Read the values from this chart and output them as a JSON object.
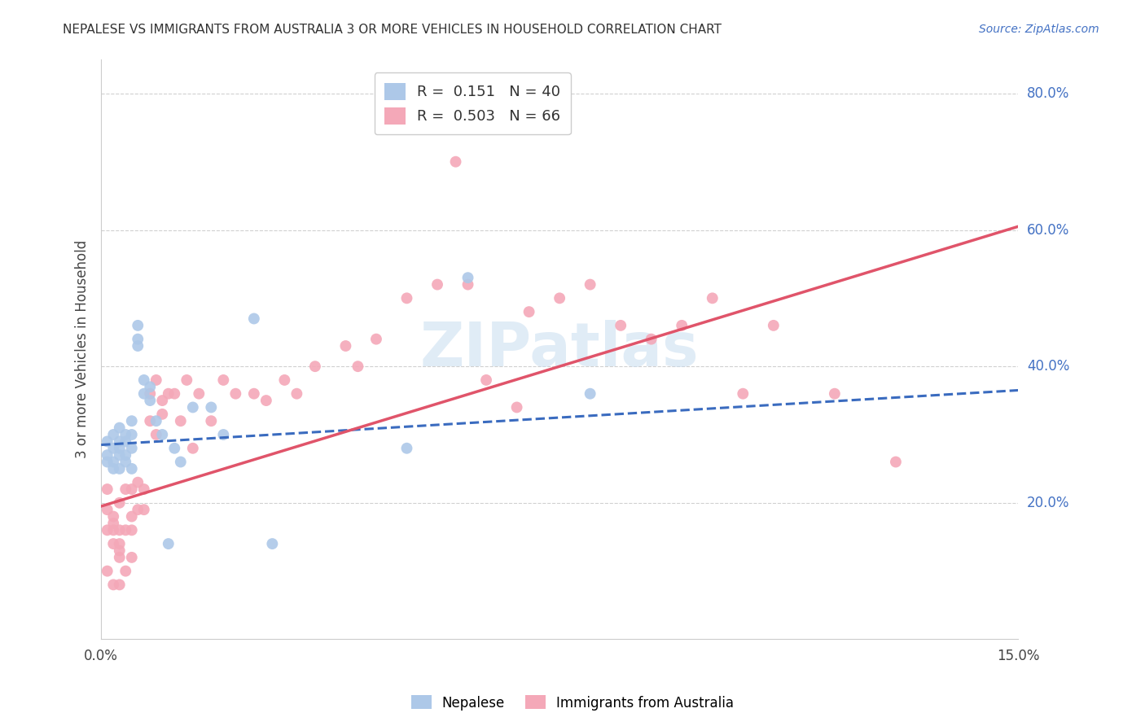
{
  "title": "NEPALESE VS IMMIGRANTS FROM AUSTRALIA 3 OR MORE VEHICLES IN HOUSEHOLD CORRELATION CHART",
  "source": "Source: ZipAtlas.com",
  "ylabel": "3 or more Vehicles in Household",
  "x_min": 0.0,
  "x_max": 0.15,
  "y_min": 0.0,
  "y_max": 0.85,
  "x_ticks": [
    0.0,
    0.03,
    0.06,
    0.09,
    0.12,
    0.15
  ],
  "x_tick_labels": [
    "0.0%",
    "",
    "",
    "",
    "",
    "15.0%"
  ],
  "y_tick_positions": [
    0.2,
    0.4,
    0.6,
    0.8
  ],
  "y_tick_labels": [
    "20.0%",
    "40.0%",
    "60.0%",
    "80.0%"
  ],
  "nepalese_color": "#adc8e8",
  "australia_color": "#f4a8b8",
  "nepalese_line_color": "#3a6bbf",
  "australia_line_color": "#e0546a",
  "watermark": "ZIPatlas",
  "background_color": "#ffffff",
  "grid_color": "#d0d0d0",
  "nepalese_scatter_x": [
    0.001,
    0.001,
    0.001,
    0.002,
    0.002,
    0.002,
    0.002,
    0.003,
    0.003,
    0.003,
    0.003,
    0.003,
    0.004,
    0.004,
    0.004,
    0.004,
    0.005,
    0.005,
    0.005,
    0.005,
    0.006,
    0.006,
    0.006,
    0.007,
    0.007,
    0.008,
    0.008,
    0.009,
    0.01,
    0.011,
    0.012,
    0.013,
    0.015,
    0.018,
    0.02,
    0.025,
    0.028,
    0.05,
    0.06,
    0.08
  ],
  "nepalese_scatter_y": [
    0.27,
    0.29,
    0.26,
    0.25,
    0.28,
    0.3,
    0.26,
    0.25,
    0.27,
    0.29,
    0.31,
    0.28,
    0.27,
    0.29,
    0.26,
    0.3,
    0.25,
    0.28,
    0.3,
    0.32,
    0.43,
    0.46,
    0.44,
    0.38,
    0.36,
    0.35,
    0.37,
    0.32,
    0.3,
    0.14,
    0.28,
    0.26,
    0.34,
    0.34,
    0.3,
    0.47,
    0.14,
    0.28,
    0.53,
    0.36
  ],
  "australia_scatter_x": [
    0.001,
    0.001,
    0.001,
    0.002,
    0.002,
    0.002,
    0.002,
    0.003,
    0.003,
    0.003,
    0.003,
    0.004,
    0.004,
    0.005,
    0.005,
    0.005,
    0.006,
    0.006,
    0.007,
    0.007,
    0.008,
    0.008,
    0.009,
    0.009,
    0.01,
    0.01,
    0.011,
    0.012,
    0.013,
    0.014,
    0.015,
    0.016,
    0.018,
    0.02,
    0.022,
    0.025,
    0.027,
    0.03,
    0.032,
    0.035,
    0.04,
    0.042,
    0.045,
    0.05,
    0.055,
    0.058,
    0.06,
    0.063,
    0.068,
    0.07,
    0.075,
    0.08,
    0.085,
    0.09,
    0.095,
    0.1,
    0.105,
    0.11,
    0.12,
    0.13,
    0.001,
    0.002,
    0.003,
    0.003,
    0.004,
    0.005
  ],
  "australia_scatter_y": [
    0.19,
    0.22,
    0.16,
    0.16,
    0.18,
    0.14,
    0.17,
    0.13,
    0.16,
    0.2,
    0.14,
    0.16,
    0.22,
    0.18,
    0.22,
    0.16,
    0.23,
    0.19,
    0.19,
    0.22,
    0.32,
    0.36,
    0.3,
    0.38,
    0.35,
    0.33,
    0.36,
    0.36,
    0.32,
    0.38,
    0.28,
    0.36,
    0.32,
    0.38,
    0.36,
    0.36,
    0.35,
    0.38,
    0.36,
    0.4,
    0.43,
    0.4,
    0.44,
    0.5,
    0.52,
    0.7,
    0.52,
    0.38,
    0.34,
    0.48,
    0.5,
    0.52,
    0.46,
    0.44,
    0.46,
    0.5,
    0.36,
    0.46,
    0.36,
    0.26,
    0.1,
    0.08,
    0.12,
    0.08,
    0.1,
    0.12
  ],
  "nepalese_line_x0": 0.0,
  "nepalese_line_y0": 0.285,
  "nepalese_line_x1": 0.15,
  "nepalese_line_y1": 0.365,
  "australia_line_x0": 0.0,
  "australia_line_y0": 0.195,
  "australia_line_x1": 0.15,
  "australia_line_y1": 0.605
}
